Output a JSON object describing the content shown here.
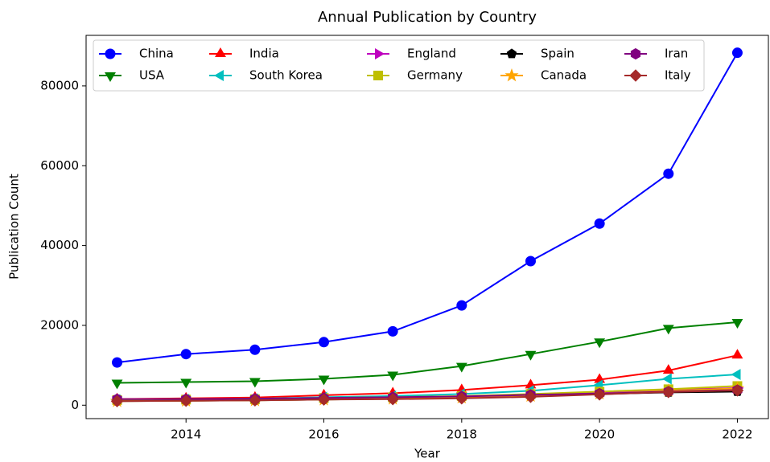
{
  "chart_data": {
    "type": "line",
    "title": "Annual Publication by Country",
    "xlabel": "Year",
    "ylabel": "Publication Count",
    "x": [
      2013,
      2014,
      2015,
      2016,
      2017,
      2018,
      2019,
      2020,
      2021,
      2022
    ],
    "xlim": [
      2012.55,
      2022.45
    ],
    "xticks": [
      2014,
      2016,
      2018,
      2020,
      2022
    ],
    "ylim": [
      -3365,
      92665
    ],
    "yticks": [
      0,
      20000,
      40000,
      60000,
      80000
    ],
    "legend": "upper left",
    "legend_columns": 5,
    "series": [
      {
        "name": "China",
        "color": "#0000ff",
        "marker": "o",
        "values": [
          10700,
          12800,
          13900,
          15800,
          18500,
          25000,
          36100,
          45500,
          58000,
          88300
        ]
      },
      {
        "name": "USA",
        "color": "#008000",
        "marker": "v",
        "values": [
          5600,
          5800,
          6000,
          6600,
          7600,
          9800,
          12800,
          15900,
          19300,
          20800
        ]
      },
      {
        "name": "India",
        "color": "#ff0000",
        "marker": "^",
        "values": [
          1500,
          1700,
          1900,
          2500,
          3000,
          3800,
          5000,
          6400,
          8700,
          12500
        ]
      },
      {
        "name": "South Korea",
        "color": "#00bfbf",
        "marker": "<",
        "values": [
          1400,
          1500,
          1600,
          2000,
          2300,
          2800,
          3600,
          5000,
          6600,
          7700
        ]
      },
      {
        "name": "England",
        "color": "#bf00bf",
        "marker": ">",
        "values": [
          1200,
          1300,
          1400,
          1700,
          1900,
          2200,
          2700,
          3200,
          3800,
          4300
        ]
      },
      {
        "name": "Germany",
        "color": "#bfbf00",
        "marker": "s",
        "values": [
          1300,
          1400,
          1500,
          1800,
          2000,
          2300,
          2800,
          3400,
          4000,
          4800
        ]
      },
      {
        "name": "Spain",
        "color": "#000000",
        "marker": "p",
        "values": [
          1000,
          1100,
          1200,
          1400,
          1600,
          1900,
          2300,
          2800,
          3200,
          3400
        ]
      },
      {
        "name": "Canada",
        "color": "#ffa500",
        "marker": "*",
        "values": [
          1000,
          1100,
          1200,
          1400,
          1600,
          1900,
          2300,
          2900,
          3600,
          4200
        ]
      },
      {
        "name": "Iran",
        "color": "#800080",
        "marker": "h",
        "values": [
          1500,
          1500,
          1600,
          1800,
          2000,
          2200,
          2600,
          2900,
          3400,
          3800
        ]
      },
      {
        "name": "Italy",
        "color": "#a52a2a",
        "marker": "D",
        "values": [
          1000,
          1100,
          1200,
          1400,
          1500,
          1700,
          2100,
          2700,
          3300,
          3700
        ]
      }
    ]
  }
}
